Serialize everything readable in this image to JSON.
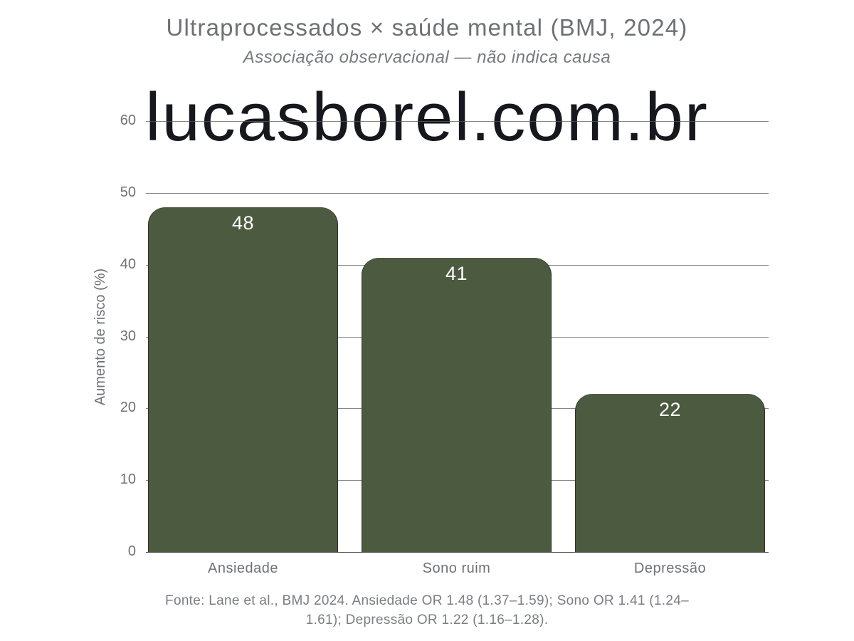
{
  "chart_data": {
    "type": "bar",
    "title": "Ultraprocessados × saúde mental (BMJ, 2024)",
    "subtitle": "Associação observacional — não indica causa",
    "categories": [
      "Ansiedade",
      "Sono ruim",
      "Depressão"
    ],
    "values": [
      48,
      41,
      22
    ],
    "ylabel": "Aumento de risco (%)",
    "ylim": [
      0,
      60
    ],
    "yticks": [
      0,
      10,
      20,
      30,
      40,
      50,
      60
    ],
    "grid": true,
    "legend": "none",
    "bar_color": "#4c5a40",
    "value_label_color": "#ffffff",
    "gridline_color": "#5a5c60"
  },
  "watermark": "lucasborel.com.br",
  "footer_lines": [
    "Fonte: Lane et al., BMJ 2024. Ansiedade OR 1.48 (1.37–1.59); Sono OR 1.41 (1.24–",
    "1.61); Depressão OR 1.22 (1.16–1.28)."
  ]
}
